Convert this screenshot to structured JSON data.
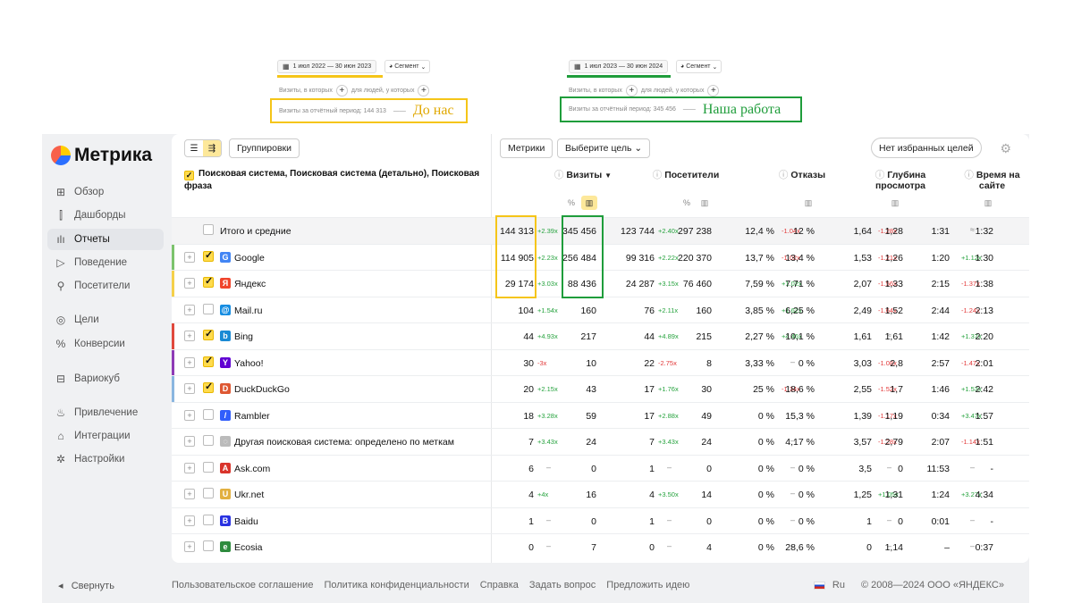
{
  "snapshot_before": {
    "period": "1 июл 2022 — 30 июн 2023",
    "segment": "Сегмент",
    "visits_where": "Визиты, в которых",
    "for_people": "для людей, у которых",
    "visits_period": "Визиты за отчётный период: 144 313",
    "label": "До нас",
    "color": "#f5c518"
  },
  "snapshot_after": {
    "period": "1 июл 2023 — 30 июн 2024",
    "segment": "Сегмент",
    "visits_where": "Визиты, в которых",
    "for_people": "для людей, у которых",
    "visits_period": "Визиты за отчётный период: 345 456",
    "label": "Наша работа",
    "color": "#1f9d3b"
  },
  "logo": "Метрика",
  "nav": [
    {
      "label": "Обзор",
      "icon": "overview-icon"
    },
    {
      "label": "Дашборды",
      "icon": "dashboards-icon"
    },
    {
      "label": "Отчеты",
      "icon": "reports-icon",
      "active": true
    },
    {
      "label": "Поведение",
      "icon": "play-icon"
    },
    {
      "label": "Посетители",
      "icon": "user-icon"
    },
    {
      "label": "Цели",
      "icon": "target-icon"
    },
    {
      "label": "Конверсии",
      "icon": "percent-icon"
    },
    {
      "label": "Вариокуб",
      "icon": "cube-icon"
    },
    {
      "label": "Привлечение",
      "icon": "flame-icon"
    },
    {
      "label": "Интеграции",
      "icon": "puzzle-icon"
    },
    {
      "label": "Настройки",
      "icon": "settings-icon"
    }
  ],
  "toolbar": {
    "groupings": "Группировки",
    "metrics": "Метрики",
    "goal": "Выберите цель",
    "favorites": "Нет избранных целей"
  },
  "dimension_header": "Поисковая система, Поисковая система (детально), Поисковая фраза",
  "columns": [
    {
      "label": "Визиты",
      "sort": "▼"
    },
    {
      "label": "Посетители"
    },
    {
      "label": "Отказы"
    },
    {
      "label": "Глубина просмотра"
    },
    {
      "label": "Время на сайте"
    }
  ],
  "rows": [
    {
      "name": "Итого и средние",
      "total": true,
      "v": [
        "144 313",
        "+2.39x",
        "345 456",
        "123 744",
        "+2.40x",
        "297 238",
        "12,4 %",
        "-1.04x",
        "12 %",
        "1,64",
        "-1.28x",
        "1,28",
        "1:31",
        "≈",
        "1:32"
      ]
    },
    {
      "name": "Google",
      "fav": "G",
      "favcolor": "#4285f4",
      "bar": "#7cc36d",
      "checked": true,
      "v": [
        "114 905",
        "+2.23x",
        "256 484",
        "99 316",
        "+2.22x",
        "220 370",
        "13,7 %",
        "-1.02x",
        "13,4 %",
        "1,53",
        "-1.21x",
        "1,26",
        "1:20",
        "+1.12x",
        "1:30"
      ]
    },
    {
      "name": "Яндекс",
      "fav": "Я",
      "favcolor": "#f0442c",
      "bar": "#f5d04a",
      "checked": true,
      "v": [
        "29 174",
        "+3.03x",
        "88 436",
        "24 287",
        "+3.15x",
        "76 460",
        "7,59 %",
        "+1.02x",
        "7,71 %",
        "2,07",
        "-1.56x",
        "1,33",
        "2:15",
        "-1.37x",
        "1:38"
      ]
    },
    {
      "name": "Mail.ru",
      "fav": "@",
      "favcolor": "#168de2",
      "v": [
        "104",
        "+1.54x",
        "160",
        "76",
        "+2.11x",
        "160",
        "3,85 %",
        "+1.62x",
        "6,25 %",
        "2,49",
        "-1.64x",
        "1,52",
        "2:44",
        "-1.24x",
        "2:13"
      ]
    },
    {
      "name": "Bing",
      "fav": "b",
      "favcolor": "#1a8ad4",
      "bar": "#e0493d",
      "checked": true,
      "v": [
        "44",
        "+4.93x",
        "217",
        "44",
        "+4.89x",
        "215",
        "2,27 %",
        "+4.46x",
        "10,1 %",
        "1,61",
        "≈",
        "1,61",
        "1:42",
        "+1.37x",
        "2:20"
      ]
    },
    {
      "name": "Yahoo!",
      "fav": "Y",
      "favcolor": "#6001d2",
      "bar": "#8e3bb6",
      "checked": true,
      "v": [
        "30",
        "-3x",
        "10",
        "22",
        "-2.75x",
        "8",
        "3,33 %",
        "–",
        "0 %",
        "3,03",
        "-1.08x",
        "2,8",
        "2:57",
        "-1.47x",
        "2:01"
      ]
    },
    {
      "name": "DuckDuckGo",
      "fav": "D",
      "favcolor": "#de5833",
      "bar": "#8ab6e0",
      "checked": true,
      "v": [
        "20",
        "+2.15x",
        "43",
        "17",
        "+1.76x",
        "30",
        "25 %",
        "-1.34x",
        "18,6 %",
        "2,55",
        "-1.52x",
        "1,7",
        "1:46",
        "+1.53x",
        "2:42"
      ]
    },
    {
      "name": "Rambler",
      "fav": "/",
      "favcolor": "#315efb",
      "v": [
        "18",
        "+3.28x",
        "59",
        "17",
        "+2.88x",
        "49",
        "0 %",
        "–",
        "15,3 %",
        "1,39",
        "-1.17x",
        "1,19",
        "0:34",
        "+3.47x",
        "1:57"
      ]
    },
    {
      "name": "Другая поисковая система: определено по меткам",
      "fav": "◌",
      "favcolor": "#bbbbbb",
      "v": [
        "7",
        "+3.43x",
        "24",
        "7",
        "+3.43x",
        "24",
        "0 %",
        "–",
        "4,17 %",
        "3,57",
        "-1.28x",
        "2,79",
        "2:07",
        "-1.14x",
        "1:51"
      ]
    },
    {
      "name": "Ask.com",
      "fav": "A",
      "favcolor": "#d9342b",
      "v": [
        "6",
        "–",
        "0",
        "1",
        "–",
        "0",
        "0 %",
        "–",
        "0 %",
        "3,5",
        "–",
        "0",
        "11:53",
        "–",
        "-"
      ]
    },
    {
      "name": "Ukr.net",
      "fav": "U",
      "favcolor": "#e2b040",
      "v": [
        "4",
        "+4x",
        "16",
        "4",
        "+3.50x",
        "14",
        "0 %",
        "–",
        "0 %",
        "1,25",
        "+1.05x",
        "1,31",
        "1:24",
        "+3.27x",
        "4:34"
      ]
    },
    {
      "name": "Baidu",
      "fav": "B",
      "favcolor": "#2932e1",
      "v": [
        "1",
        "–",
        "0",
        "1",
        "–",
        "0",
        "0 %",
        "–",
        "0 %",
        "1",
        "–",
        "0",
        "0:01",
        "–",
        "-"
      ]
    },
    {
      "name": "Ecosia",
      "fav": "e",
      "favcolor": "#2e8b3e",
      "v": [
        "0",
        "–",
        "7",
        "0",
        "–",
        "4",
        "0 %",
        "–",
        "28,6 %",
        "0",
        "–",
        "1,14",
        "–",
        "–",
        "0:37"
      ]
    }
  ],
  "footer": {
    "collapse": "Свернуть",
    "links": [
      "Пользовательское соглашение",
      "Политика конфиденциальности",
      "Справка",
      "Задать вопрос",
      "Предложить идею"
    ],
    "lang": "Ru",
    "copyright": "© 2008—2024 ООО «ЯНДЕКС»"
  }
}
